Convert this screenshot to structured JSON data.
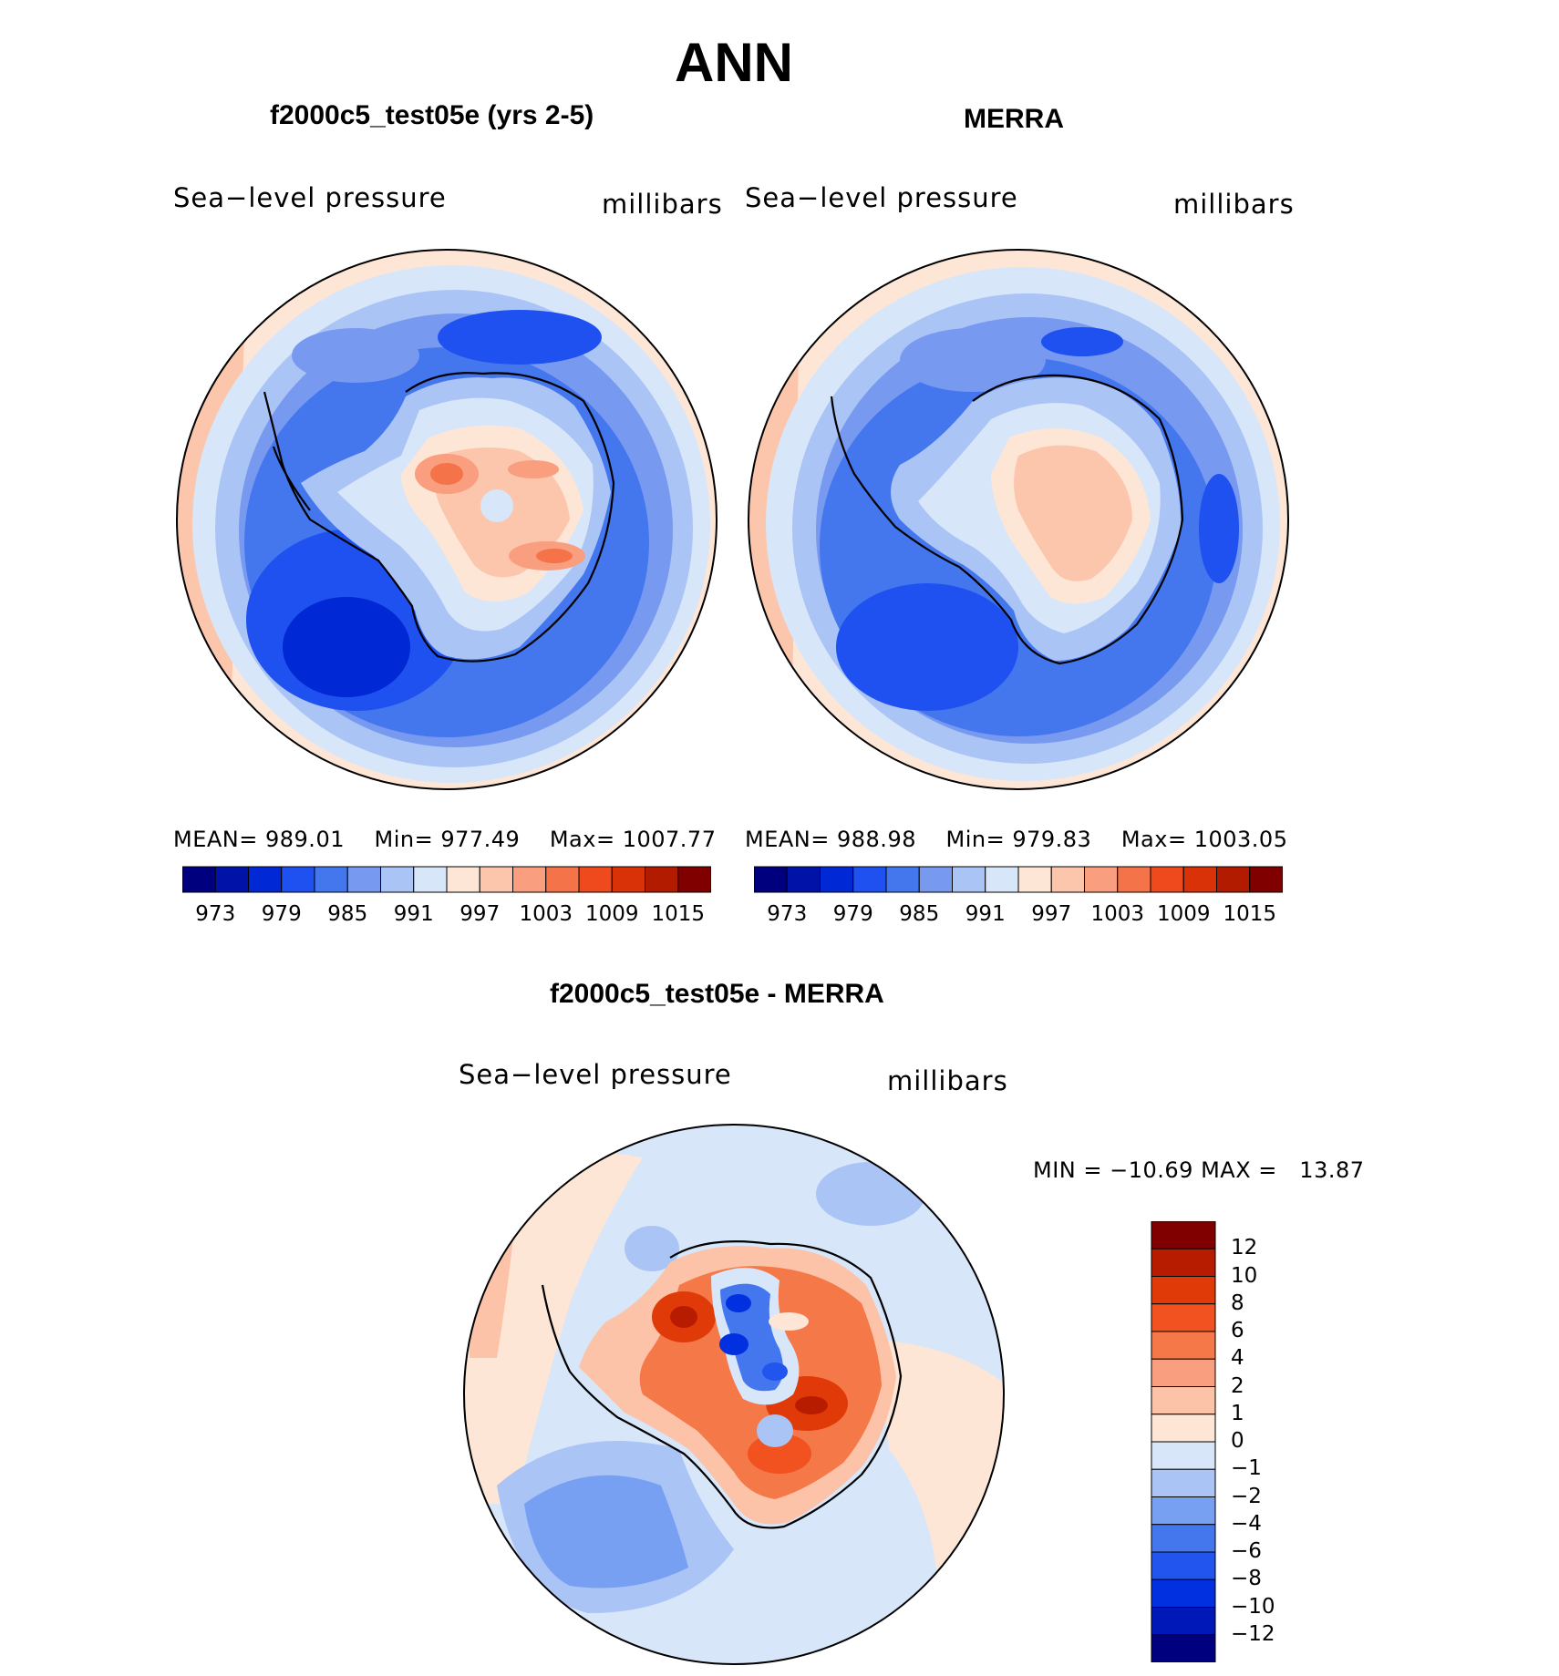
{
  "page_title": "ANN",
  "panels": [
    {
      "title": "f2000c5_test05e (yrs 2-5)",
      "left_label": "Sea−level pressure",
      "right_label": "millibars",
      "stats": {
        "mean_label": "MEAN=",
        "mean": "989.01",
        "min_label": "Min=",
        "min": "977.49",
        "max_label": "Max=",
        "max": "1007.77"
      }
    },
    {
      "title": "MERRA",
      "left_label": "Sea−level pressure",
      "right_label": "millibars",
      "stats": {
        "mean_label": "MEAN=",
        "mean": "988.98",
        "min_label": "Min=",
        "min": "979.83",
        "max_label": "Max=",
        "max": "1003.05"
      }
    },
    {
      "title": "f2000c5_test05e - MERRA",
      "left_label": "Sea−level pressure",
      "right_label": "millibars",
      "stats": {
        "min_label": "MIN =",
        "min": "−10.69",
        "max_label": "MAX =",
        "max": "13.87"
      }
    }
  ],
  "abs_colorbar": {
    "colors": [
      "#00007f",
      "#0012a8",
      "#0028d4",
      "#1f50f0",
      "#4477ee",
      "#7799f0",
      "#aac4f5",
      "#d8e6fa",
      "#fde6d6",
      "#fcc6ac",
      "#f99e7e",
      "#f47348",
      "#ee4a1e",
      "#d93108",
      "#b21b00",
      "#800000"
    ],
    "ticks": [
      "973",
      "979",
      "985",
      "991",
      "997",
      "1003",
      "1009",
      "1015"
    ]
  },
  "diff_colorbar": {
    "colors": [
      "#00007f",
      "#0018b8",
      "#0030e0",
      "#2255ee",
      "#4477ee",
      "#77a0f2",
      "#aac4f5",
      "#d8e6fa",
      "#fde6d6",
      "#fcc3a8",
      "#f99e7e",
      "#f47848",
      "#f25220",
      "#e03a08",
      "#b81c00",
      "#800000"
    ],
    "ticks": [
      "12",
      "10",
      "8",
      "6",
      "4",
      "2",
      "1",
      "0",
      "−1",
      "−2",
      "−4",
      "−6",
      "−8",
      "−10",
      "−12"
    ]
  }
}
